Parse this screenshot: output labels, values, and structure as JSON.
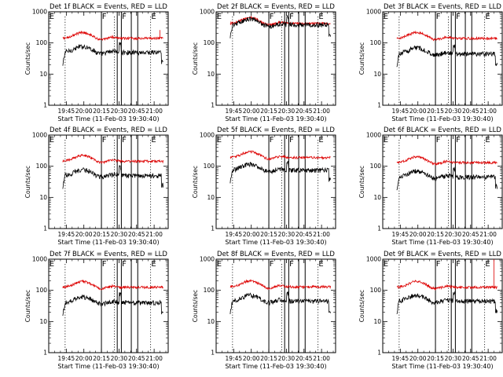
{
  "chart_data": {
    "type": "line",
    "layout": "3x3 grid",
    "shared": {
      "xlabel": "Start Time (11-Feb-03 19:30:40)",
      "ylabel": "Counts/sec",
      "y_scale": "log",
      "ylim": [
        1,
        1000
      ],
      "y_ticks": [
        1,
        10,
        100,
        1000
      ],
      "y_tick_labels": [
        "1",
        "10",
        "100",
        "1000"
      ],
      "xlim": [
        "19:30",
        "21:12"
      ],
      "x_tick_labels": [
        "19:45",
        "20:00",
        "20:15",
        "20:30",
        "20:45",
        "21:00"
      ],
      "x_ticks_min": [
        15,
        30,
        45,
        60,
        75,
        90
      ],
      "grid": false,
      "series_colors": {
        "events": "#000000",
        "lld": "#dd0000"
      }
    },
    "panels": [
      {
        "title": "Det 1f BLACK = Events, RED = LLD",
        "events_level": 50,
        "lld_level": 140,
        "spike_min": 95,
        "spike_value": 260,
        "flags": [
          "E",
          "F",
          "F",
          "E"
        ]
      },
      {
        "title": "Det 2f BLACK = Events, RED = LLD",
        "events_level": 380,
        "lld_level": 420,
        "flags": [
          "E",
          "F",
          "F",
          "E"
        ]
      },
      {
        "title": "Det 3f BLACK = Events, RED = LLD",
        "events_level": 45,
        "lld_level": 140,
        "flags": [
          "E",
          "F",
          "F",
          "E"
        ]
      },
      {
        "title": "Det 4f BLACK = Events, RED = LLD",
        "events_level": 50,
        "lld_level": 145,
        "flags": [
          "E",
          "F",
          "F",
          "E"
        ]
      },
      {
        "title": "Det 5f BLACK = Events, RED = LLD",
        "events_level": 75,
        "lld_level": 190,
        "flags": [
          "E",
          "F",
          "F",
          "E"
        ]
      },
      {
        "title": "Det 6f BLACK = Events, RED = LLD",
        "events_level": 45,
        "lld_level": 130,
        "flags": [
          "E",
          "F",
          "F",
          "E"
        ]
      },
      {
        "title": "Det 7f BLACK = Events, RED = LLD",
        "events_level": 40,
        "lld_level": 125,
        "flags": [
          "E",
          "F",
          "F",
          "E"
        ]
      },
      {
        "title": "Det 8f BLACK = Events, RED = LLD",
        "events_level": 45,
        "lld_level": 130,
        "flags": [
          "E",
          "F",
          "F",
          "E"
        ]
      },
      {
        "title": "Det 9f BLACK = Events, RED = LLD",
        "events_level": 45,
        "lld_level": 125,
        "spike_min": 95,
        "spike_value": 1000,
        "flags": [
          "E",
          "F",
          "F",
          "E"
        ]
      }
    ],
    "markers_min": {
      "dotted": [
        14,
        56,
        87
      ],
      "solid": [
        45,
        58.5,
        62,
        70.5,
        76
      ]
    },
    "data_range_min": [
      12,
      98
    ]
  }
}
